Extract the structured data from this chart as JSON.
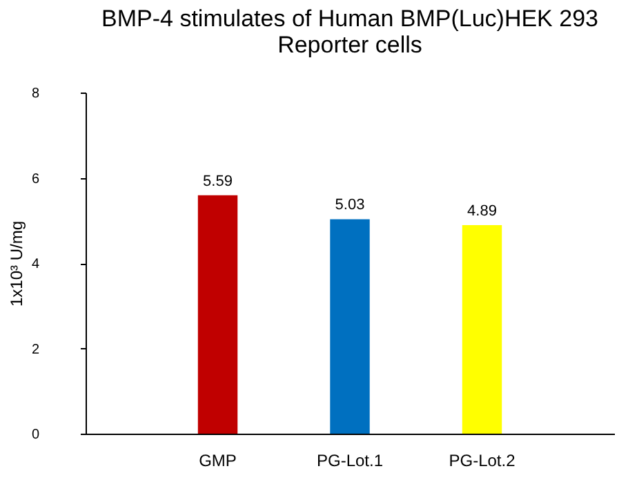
{
  "chart_data": {
    "type": "bar",
    "title": "BMP-4 stimulates of Human BMP(Luc)HEK 293 Reporter cells",
    "ylabel": "1x10³ U/mg",
    "categories": [
      "GMP",
      "PG-Lot.1",
      "PG-Lot.2"
    ],
    "values": [
      5.59,
      5.03,
      4.89
    ],
    "colors": [
      "#c00000",
      "#0070c0",
      "#ffff00"
    ],
    "ylim": [
      0,
      8
    ],
    "yticks": [
      0,
      2,
      4,
      6,
      8
    ],
    "grid": false,
    "data_labels": true
  }
}
